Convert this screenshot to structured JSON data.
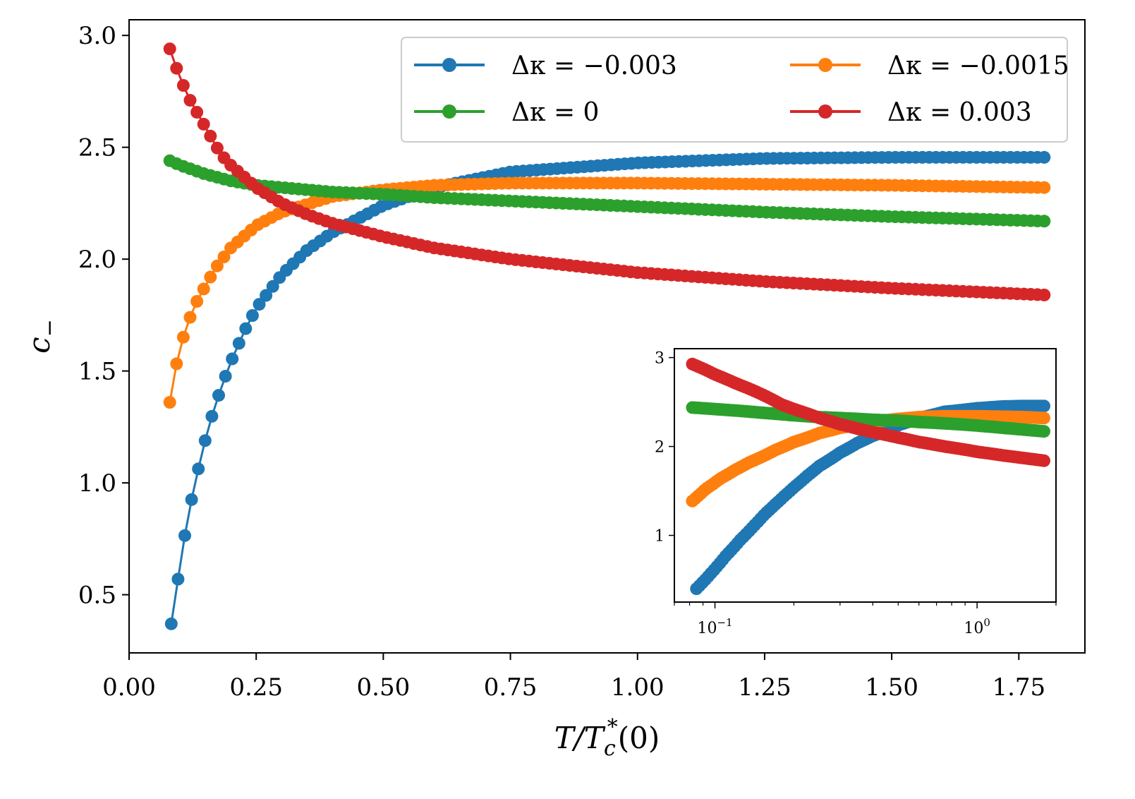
{
  "chart_data": [
    {
      "type": "line",
      "title": "",
      "xlabel": "T/T_c^*(0)",
      "ylabel": "c_-",
      "xlim": [
        0.0,
        1.88
      ],
      "ylim": [
        0.24,
        3.07
      ],
      "xticks": [
        0.0,
        0.25,
        0.5,
        0.75,
        1.0,
        1.25,
        1.5,
        1.75
      ],
      "xtick_labels": [
        "0.00",
        "0.25",
        "0.50",
        "0.75",
        "1.00",
        "1.25",
        "1.50",
        "1.75"
      ],
      "yticks": [
        0.5,
        1.0,
        1.5,
        2.0,
        2.5,
        3.0
      ],
      "ytick_labels": [
        "0.5",
        "1.0",
        "1.5",
        "2.0",
        "2.5",
        "3.0"
      ],
      "x_range": [
        0.08,
        1.8
      ],
      "legend_position": "top-right",
      "series": [
        {
          "name": "Δκ = −0.003",
          "color": "#1f77b4",
          "x": [
            0.083,
            0.097,
            0.11,
            0.125,
            0.14,
            0.155,
            0.17,
            0.185,
            0.2,
            0.225,
            0.25,
            0.3,
            0.35,
            0.4,
            0.5,
            0.6,
            0.75,
            1.0,
            1.25,
            1.5,
            1.8
          ],
          "values": [
            0.37,
            0.58,
            0.77,
            0.95,
            1.1,
            1.24,
            1.35,
            1.45,
            1.54,
            1.67,
            1.78,
            1.93,
            2.04,
            2.12,
            2.24,
            2.32,
            2.39,
            2.43,
            2.45,
            2.455,
            2.455
          ]
        },
        {
          "name": "Δκ = −0.0015",
          "color": "#ff7f0e",
          "x": [
            0.08,
            0.092,
            0.105,
            0.12,
            0.135,
            0.15,
            0.17,
            0.2,
            0.25,
            0.3,
            0.4,
            0.5,
            0.6,
            0.75,
            1.0,
            1.25,
            1.5,
            1.8
          ],
          "values": [
            1.36,
            1.52,
            1.64,
            1.74,
            1.82,
            1.88,
            1.96,
            2.05,
            2.15,
            2.21,
            2.28,
            2.31,
            2.33,
            2.34,
            2.34,
            2.335,
            2.33,
            2.32
          ]
        },
        {
          "name": "Δκ = 0",
          "color": "#2ca02c",
          "x": [
            0.08,
            0.1,
            0.15,
            0.2,
            0.25,
            0.3,
            0.4,
            0.5,
            0.6,
            0.75,
            1.0,
            1.25,
            1.5,
            1.8
          ],
          "values": [
            2.44,
            2.42,
            2.38,
            2.35,
            2.33,
            2.32,
            2.3,
            2.29,
            2.275,
            2.26,
            2.235,
            2.21,
            2.19,
            2.17
          ]
        },
        {
          "name": "Δκ = 0.003",
          "color": "#d62728",
          "x": [
            0.08,
            0.1,
            0.12,
            0.15,
            0.18,
            0.2,
            0.25,
            0.3,
            0.35,
            0.4,
            0.5,
            0.6,
            0.75,
            1.0,
            1.25,
            1.5,
            1.8
          ],
          "values": [
            2.94,
            2.81,
            2.71,
            2.59,
            2.47,
            2.42,
            2.32,
            2.25,
            2.2,
            2.16,
            2.1,
            2.05,
            2.0,
            1.94,
            1.9,
            1.87,
            1.84
          ]
        }
      ]
    },
    {
      "type": "line",
      "title": "inset",
      "xlabel": "",
      "ylabel": "",
      "xscale": "log",
      "xlim": [
        0.07,
        2.0
      ],
      "ylim": [
        0.25,
        3.1
      ],
      "yticks": [
        1,
        2,
        3
      ],
      "ytick_labels": [
        "1",
        "2",
        "3"
      ],
      "xticks_major": [
        0.1,
        1.0
      ],
      "xtick_base_labels": [
        "10",
        "10"
      ],
      "xtick_exp_labels": [
        "−1",
        "0"
      ]
    }
  ]
}
